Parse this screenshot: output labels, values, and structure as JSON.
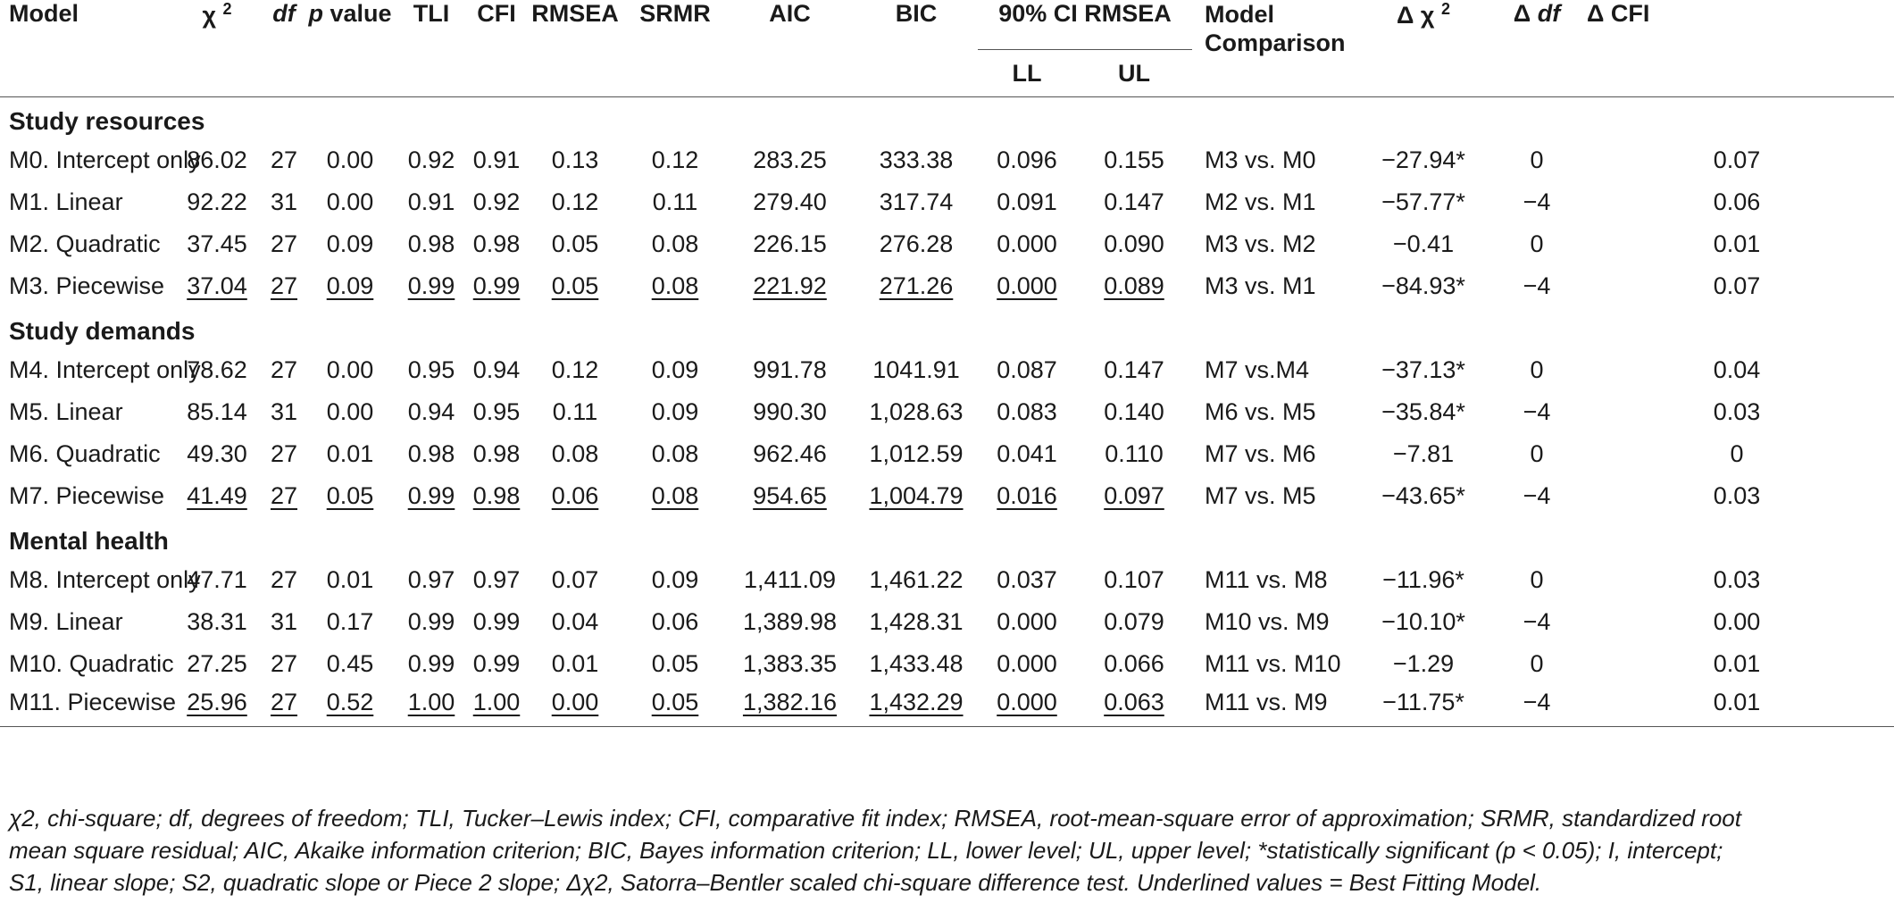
{
  "header": {
    "model": "Model",
    "chi2_symbol": "χ",
    "chi2_sup": "2",
    "df": "df",
    "p_italic": "p",
    "p_rest": " value",
    "tli": "TLI",
    "cfi": "CFI",
    "rmsea": "RMSEA",
    "srmr": "SRMR",
    "aic": "AIC",
    "bic": "BIC",
    "ci_rmsea": "90% CI RMSEA",
    "ll": "LL",
    "ul": "UL",
    "comparison_line1": "Model",
    "comparison_line2": "Comparison",
    "dchi2_symbol": "Δ χ",
    "dchi2_sup": "2",
    "ddf_prefix": "Δ ",
    "ddf_italic": "df",
    "dcfi": "Δ CFI"
  },
  "sections": [
    {
      "title": "Study resources",
      "rows": [
        {
          "model": "M0. Intercept only",
          "chi2": "86.02",
          "df": "27",
          "p": "0.00",
          "tli": "0.92",
          "cfi": "0.91",
          "rmsea": "0.13",
          "srmr": "0.12",
          "aic": "283.25",
          "bic": "333.38",
          "ll": "0.096",
          "ul": "0.155",
          "comparison": "M3 vs. M0",
          "dchi2": "−27.94*",
          "ddf": "0",
          "dcfi": "0.07"
        },
        {
          "model": "M1. Linear",
          "chi2": "92.22",
          "df": "31",
          "p": "0.00",
          "tli": "0.91",
          "cfi": "0.92",
          "rmsea": "0.12",
          "srmr": "0.11",
          "aic": "279.40",
          "bic": "317.74",
          "ll": "0.091",
          "ul": "0.147",
          "comparison": "M2 vs. M1",
          "dchi2": "−57.77*",
          "ddf": "−4",
          "dcfi": "0.06"
        },
        {
          "model": "M2. Quadratic",
          "chi2": "37.45",
          "df": "27",
          "p": "0.09",
          "tli": "0.98",
          "cfi": "0.98",
          "rmsea": "0.05",
          "srmr": "0.08",
          "aic": "226.15",
          "bic": "276.28",
          "ll": "0.000",
          "ul": "0.090",
          "comparison": "M3 vs. M2",
          "dchi2": "−0.41",
          "ddf": "0",
          "dcfi": "0.01"
        },
        {
          "model": "M3. Piecewise",
          "chi2": "37.04",
          "df": "27",
          "p": "0.09",
          "tli": "0.99",
          "cfi": "0.99",
          "rmsea": "0.05",
          "srmr": "0.08",
          "aic": "221.92",
          "bic": "271.26",
          "ll": "0.000",
          "ul": "0.089",
          "comparison": "M3 vs. M1",
          "dchi2": "−84.93*",
          "ddf": "−4",
          "dcfi": "0.07",
          "best": true
        }
      ]
    },
    {
      "title": "Study demands",
      "rows": [
        {
          "model": "M4. Intercept only",
          "chi2": "78.62",
          "df": "27",
          "p": "0.00",
          "tli": "0.95",
          "cfi": "0.94",
          "rmsea": "0.12",
          "srmr": "0.09",
          "aic": "991.78",
          "bic": "1041.91",
          "ll": "0.087",
          "ul": "0.147",
          "comparison": "M7 vs.M4",
          "dchi2": "−37.13*",
          "ddf": "0",
          "dcfi": "0.04"
        },
        {
          "model": "M5. Linear",
          "chi2": "85.14",
          "df": "31",
          "p": "0.00",
          "tli": "0.94",
          "cfi": "0.95",
          "rmsea": "0.11",
          "srmr": "0.09",
          "aic": "990.30",
          "bic": "1,028.63",
          "ll": "0.083",
          "ul": "0.140",
          "comparison": "M6 vs. M5",
          "dchi2": "−35.84*",
          "ddf": "−4",
          "dcfi": "0.03"
        },
        {
          "model": "M6. Quadratic",
          "chi2": "49.30",
          "df": "27",
          "p": "0.01",
          "tli": "0.98",
          "cfi": "0.98",
          "rmsea": "0.08",
          "srmr": "0.08",
          "aic": "962.46",
          "bic": "1,012.59",
          "ll": "0.041",
          "ul": "0.110",
          "comparison": "M7 vs. M6",
          "dchi2": "−7.81",
          "ddf": "0",
          "dcfi": "0"
        },
        {
          "model": "M7. Piecewise",
          "chi2": "41.49",
          "df": "27",
          "p": "0.05",
          "tli": "0.99",
          "cfi": "0.98",
          "rmsea": "0.06",
          "srmr": "0.08",
          "aic": "954.65",
          "bic": "1,004.79",
          "ll": "0.016",
          "ul": "0.097",
          "comparison": "M7 vs. M5",
          "dchi2": "−43.65*",
          "ddf": "−4",
          "dcfi": "0.03",
          "best": true
        }
      ]
    },
    {
      "title": "Mental health",
      "rows": [
        {
          "model": "M8. Intercept only",
          "chi2": "47.71",
          "df": "27",
          "p": "0.01",
          "tli": "0.97",
          "cfi": "0.97",
          "rmsea": "0.07",
          "srmr": "0.09",
          "aic": "1,411.09",
          "bic": "1,461.22",
          "ll": "0.037",
          "ul": "0.107",
          "comparison": "M11 vs. M8",
          "dchi2": "−11.96*",
          "ddf": "0",
          "dcfi": "0.03"
        },
        {
          "model": "M9. Linear",
          "chi2": "38.31",
          "df": "31",
          "p": "0.17",
          "tli": "0.99",
          "cfi": "0.99",
          "rmsea": "0.04",
          "srmr": "0.06",
          "aic": "1,389.98",
          "bic": "1,428.31",
          "ll": "0.000",
          "ul": "0.079",
          "comparison": "M10 vs. M9",
          "dchi2": "−10.10*",
          "ddf": "−4",
          "dcfi": "0.00"
        },
        {
          "model": "M10. Quadratic",
          "chi2": "27.25",
          "df": "27",
          "p": "0.45",
          "tli": "0.99",
          "cfi": "0.99",
          "rmsea": "0.01",
          "srmr": "0.05",
          "aic": "1,383.35",
          "bic": "1,433.48",
          "ll": "0.000",
          "ul": "0.066",
          "comparison": "M11 vs. M10",
          "dchi2": "−1.29",
          "ddf": "0",
          "dcfi": "0.01"
        },
        {
          "model": "M11. Piecewise",
          "chi2": "25.96",
          "df": "27",
          "p": "0.52",
          "tli": "1.00",
          "cfi": "1.00",
          "rmsea": "0.00",
          "srmr": "0.05",
          "aic": "1,382.16",
          "bic": "1,432.29",
          "ll": "0.000",
          "ul": "0.063",
          "comparison": "M11 vs. M9",
          "dchi2": "−11.75*",
          "ddf": "−4",
          "dcfi": "0.01",
          "best": true
        }
      ]
    }
  ],
  "underline_columns": [
    "chi2",
    "df",
    "p",
    "tli",
    "cfi",
    "rmsea",
    "srmr",
    "aic",
    "bic",
    "ll",
    "ul"
  ],
  "footnote": {
    "line1": "χ2, chi-square; df, degrees of freedom; TLI, Tucker–Lewis index; CFI, comparative fit index; RMSEA, root-mean-square error of approximation; SRMR, standardized root",
    "line2": "mean square residual; AIC, Akaike information criterion; BIC, Bayes information criterion; LL, lower level; UL, upper level; *statistically significant (p < 0.05); I, intercept;",
    "line3": "S1, linear slope; S2, quadratic slope or Piece 2 slope; Δχ2, Satorra–Bentler scaled chi-square difference test. Underlined values = Best Fitting Model."
  }
}
